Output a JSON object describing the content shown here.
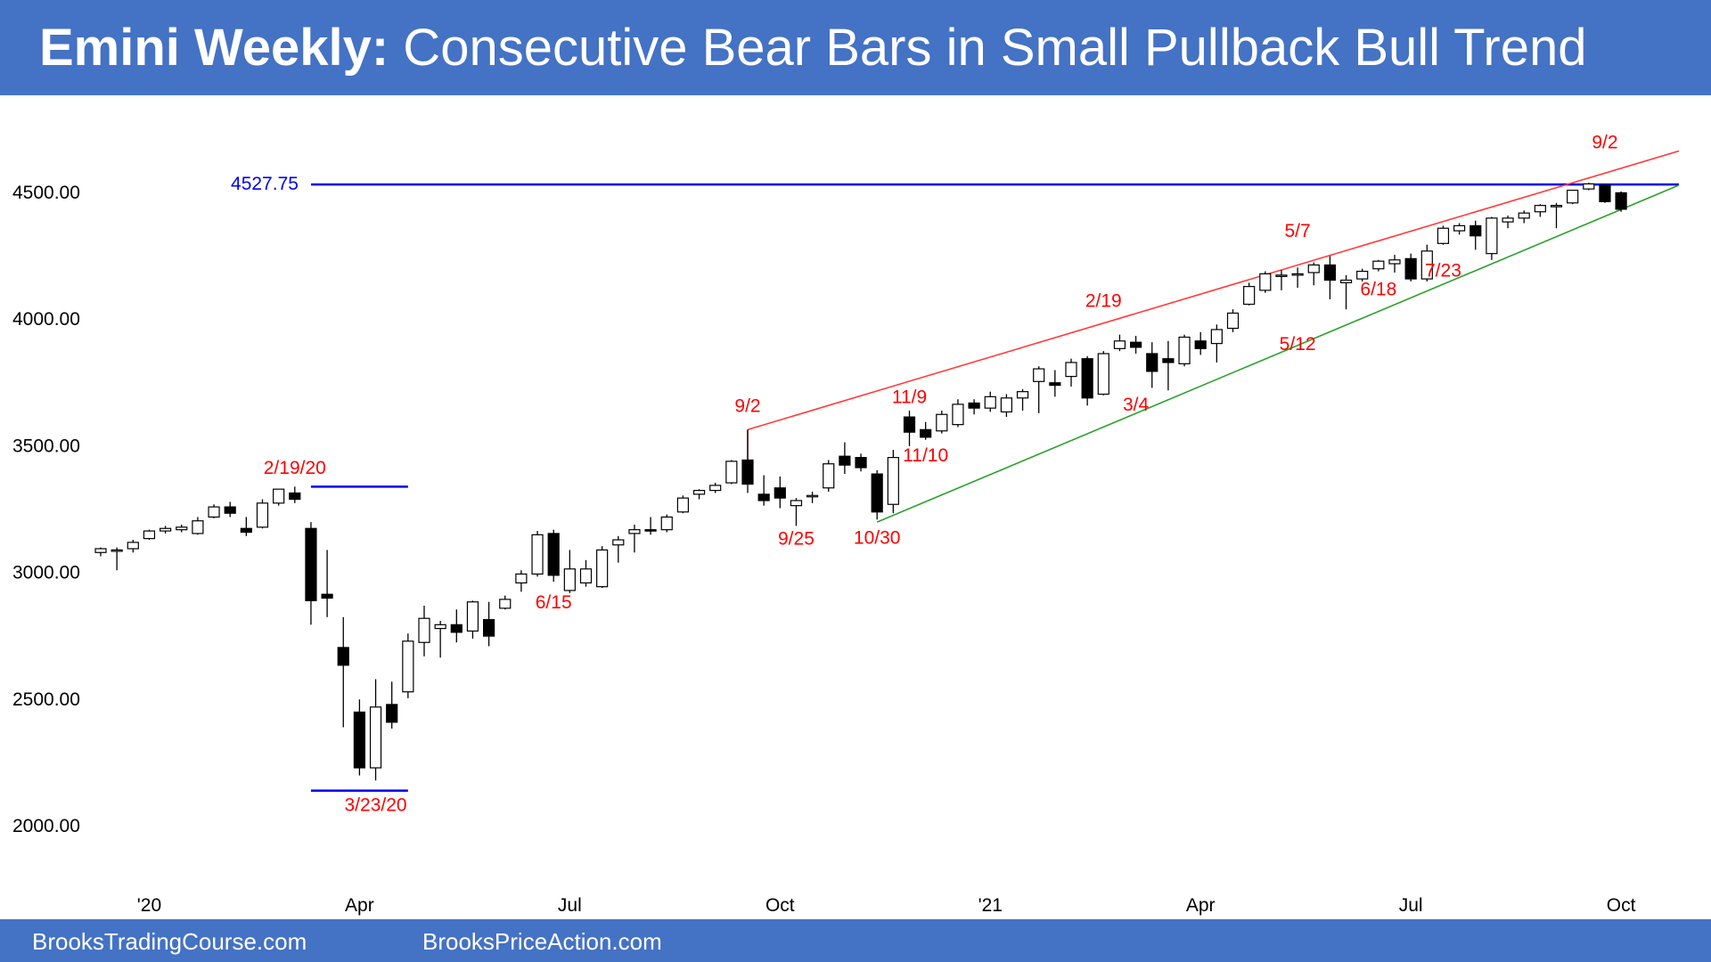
{
  "title": {
    "bold": "Emini Weekly:",
    "rest": " Consecutive Bear Bars in Small Pullback Bull Trend"
  },
  "footer": {
    "left": "BrooksTradingCourse.com",
    "right": "BrooksPriceAction.com"
  },
  "colors": {
    "banner": "#4472c4",
    "level_line": "#0000ee",
    "upper_trendline": "#ff3b3b",
    "lower_trendline": "#2ca02c",
    "label_red": "#ff0000",
    "label_blue": "#0000ee",
    "bull_bar": "#ffffff",
    "bear_bar": "#000000"
  },
  "chart_data": {
    "type": "candlestick",
    "title": "Emini Weekly: Consecutive Bear Bars in Small Pullback Bull Trend",
    "xlabel": "",
    "ylabel": "",
    "ylim": [
      1800,
      4800
    ],
    "y_ticks": [
      "2000.00",
      "2500.00",
      "3000.00",
      "3500.00",
      "4000.00",
      "4500.00"
    ],
    "x_tick_labels": [
      "'20",
      "Apr",
      "Jul",
      "Oct",
      "'21",
      "Apr",
      "Jul",
      "Oct"
    ],
    "x_tick_weeks": [
      3,
      16,
      29,
      42,
      55,
      68,
      81,
      94
    ],
    "grid": false,
    "bars": [
      {
        "o": 3075,
        "h": 3095,
        "l": 3060,
        "c": 3090
      },
      {
        "o": 3080,
        "h": 3095,
        "l": 3005,
        "c": 3085
      },
      {
        "o": 3090,
        "h": 3125,
        "l": 3075,
        "c": 3115
      },
      {
        "o": 3130,
        "h": 3165,
        "l": 3125,
        "c": 3160
      },
      {
        "o": 3160,
        "h": 3180,
        "l": 3150,
        "c": 3170
      },
      {
        "o": 3165,
        "h": 3185,
        "l": 3155,
        "c": 3175
      },
      {
        "o": 3150,
        "h": 3215,
        "l": 3145,
        "c": 3200
      },
      {
        "o": 3215,
        "h": 3265,
        "l": 3210,
        "c": 3255
      },
      {
        "o": 3255,
        "h": 3275,
        "l": 3215,
        "c": 3230
      },
      {
        "o": 3170,
        "h": 3215,
        "l": 3140,
        "c": 3155
      },
      {
        "o": 3175,
        "h": 3285,
        "l": 3170,
        "c": 3270
      },
      {
        "o": 3270,
        "h": 3325,
        "l": 3260,
        "c": 3325
      },
      {
        "o": 3310,
        "h": 3335,
        "l": 3270,
        "c": 3285
      },
      {
        "o": 3170,
        "h": 3195,
        "l": 2790,
        "c": 2885
      },
      {
        "o": 2910,
        "h": 3085,
        "l": 2820,
        "c": 2895
      },
      {
        "o": 2700,
        "h": 2820,
        "l": 2385,
        "c": 2630
      },
      {
        "o": 2445,
        "h": 2495,
        "l": 2195,
        "c": 2225
      },
      {
        "o": 2225,
        "h": 2575,
        "l": 2175,
        "c": 2465
      },
      {
        "o": 2475,
        "h": 2565,
        "l": 2380,
        "c": 2405
      },
      {
        "o": 2525,
        "h": 2755,
        "l": 2500,
        "c": 2725
      },
      {
        "o": 2720,
        "h": 2865,
        "l": 2665,
        "c": 2815
      },
      {
        "o": 2775,
        "h": 2805,
        "l": 2660,
        "c": 2790
      },
      {
        "o": 2790,
        "h": 2850,
        "l": 2720,
        "c": 2760
      },
      {
        "o": 2765,
        "h": 2885,
        "l": 2735,
        "c": 2880
      },
      {
        "o": 2810,
        "h": 2880,
        "l": 2705,
        "c": 2745
      },
      {
        "o": 2855,
        "h": 2905,
        "l": 2850,
        "c": 2890
      },
      {
        "o": 2955,
        "h": 3005,
        "l": 2920,
        "c": 2990
      },
      {
        "o": 2990,
        "h": 3160,
        "l": 2980,
        "c": 3145
      },
      {
        "o": 3150,
        "h": 3165,
        "l": 2960,
        "c": 2985
      },
      {
        "o": 2925,
        "h": 3085,
        "l": 2915,
        "c": 3010
      },
      {
        "o": 2955,
        "h": 3045,
        "l": 2940,
        "c": 3010
      },
      {
        "o": 2940,
        "h": 3100,
        "l": 2935,
        "c": 3085
      },
      {
        "o": 3105,
        "h": 3140,
        "l": 3035,
        "c": 3125
      },
      {
        "o": 3150,
        "h": 3185,
        "l": 3075,
        "c": 3165
      },
      {
        "o": 3165,
        "h": 3215,
        "l": 3145,
        "c": 3160
      },
      {
        "o": 3165,
        "h": 3225,
        "l": 3155,
        "c": 3215
      },
      {
        "o": 3235,
        "h": 3300,
        "l": 3230,
        "c": 3290
      },
      {
        "o": 3305,
        "h": 3325,
        "l": 3285,
        "c": 3320
      },
      {
        "o": 3320,
        "h": 3350,
        "l": 3310,
        "c": 3340
      },
      {
        "o": 3350,
        "h": 3440,
        "l": 3345,
        "c": 3435
      },
      {
        "o": 3440,
        "h": 3560,
        "l": 3310,
        "c": 3345
      },
      {
        "o": 3305,
        "h": 3380,
        "l": 3260,
        "c": 3280
      },
      {
        "o": 3330,
        "h": 3375,
        "l": 3250,
        "c": 3290
      },
      {
        "o": 3260,
        "h": 3290,
        "l": 3180,
        "c": 3280
      },
      {
        "o": 3295,
        "h": 3315,
        "l": 3270,
        "c": 3300
      },
      {
        "o": 3330,
        "h": 3440,
        "l": 3315,
        "c": 3425
      },
      {
        "o": 3455,
        "h": 3510,
        "l": 3385,
        "c": 3420
      },
      {
        "o": 3450,
        "h": 3465,
        "l": 3395,
        "c": 3410
      },
      {
        "o": 3385,
        "h": 3400,
        "l": 3205,
        "c": 3235
      },
      {
        "o": 3265,
        "h": 3480,
        "l": 3230,
        "c": 3450
      },
      {
        "o": 3610,
        "h": 3635,
        "l": 3495,
        "c": 3550
      },
      {
        "o": 3560,
        "h": 3590,
        "l": 3520,
        "c": 3530
      },
      {
        "o": 3555,
        "h": 3635,
        "l": 3545,
        "c": 3620
      },
      {
        "o": 3580,
        "h": 3680,
        "l": 3570,
        "c": 3660
      },
      {
        "o": 3665,
        "h": 3680,
        "l": 3620,
        "c": 3645
      },
      {
        "o": 3645,
        "h": 3710,
        "l": 3630,
        "c": 3690
      },
      {
        "o": 3630,
        "h": 3700,
        "l": 3610,
        "c": 3685
      },
      {
        "o": 3685,
        "h": 3720,
        "l": 3635,
        "c": 3710
      },
      {
        "o": 3750,
        "h": 3810,
        "l": 3625,
        "c": 3800
      },
      {
        "o": 3745,
        "h": 3795,
        "l": 3690,
        "c": 3735
      },
      {
        "o": 3770,
        "h": 3840,
        "l": 3730,
        "c": 3825
      },
      {
        "o": 3840,
        "h": 3850,
        "l": 3655,
        "c": 3685
      },
      {
        "o": 3700,
        "h": 3870,
        "l": 3695,
        "c": 3860
      },
      {
        "o": 3880,
        "h": 3935,
        "l": 3870,
        "c": 3910
      },
      {
        "o": 3905,
        "h": 3930,
        "l": 3860,
        "c": 3885
      },
      {
        "o": 3860,
        "h": 3905,
        "l": 3725,
        "c": 3790
      },
      {
        "o": 3840,
        "h": 3910,
        "l": 3715,
        "c": 3825
      },
      {
        "o": 3820,
        "h": 3935,
        "l": 3810,
        "c": 3925
      },
      {
        "o": 3910,
        "h": 3945,
        "l": 3855,
        "c": 3880
      },
      {
        "o": 3900,
        "h": 3975,
        "l": 3825,
        "c": 3955
      },
      {
        "o": 3960,
        "h": 4035,
        "l": 3945,
        "c": 4020
      },
      {
        "o": 4055,
        "h": 4140,
        "l": 4050,
        "c": 4125
      },
      {
        "o": 4110,
        "h": 4185,
        "l": 4100,
        "c": 4175
      },
      {
        "o": 4165,
        "h": 4190,
        "l": 4110,
        "c": 4170
      },
      {
        "o": 4170,
        "h": 4200,
        "l": 4120,
        "c": 4175
      },
      {
        "o": 4180,
        "h": 4220,
        "l": 4130,
        "c": 4210
      },
      {
        "o": 4210,
        "h": 4245,
        "l": 4075,
        "c": 4150
      },
      {
        "o": 4140,
        "h": 4170,
        "l": 4035,
        "c": 4150
      },
      {
        "o": 4155,
        "h": 4195,
        "l": 4145,
        "c": 4185
      },
      {
        "o": 4195,
        "h": 4230,
        "l": 4185,
        "c": 4225
      },
      {
        "o": 4215,
        "h": 4250,
        "l": 4180,
        "c": 4230
      },
      {
        "o": 4235,
        "h": 4255,
        "l": 4145,
        "c": 4155
      },
      {
        "o": 4155,
        "h": 4290,
        "l": 4145,
        "c": 4265
      },
      {
        "o": 4295,
        "h": 4365,
        "l": 4290,
        "c": 4355
      },
      {
        "o": 4345,
        "h": 4375,
        "l": 4330,
        "c": 4365
      },
      {
        "o": 4365,
        "h": 4385,
        "l": 4270,
        "c": 4325
      },
      {
        "o": 4255,
        "h": 4400,
        "l": 4230,
        "c": 4395
      },
      {
        "o": 4380,
        "h": 4405,
        "l": 4355,
        "c": 4395
      },
      {
        "o": 4395,
        "h": 4425,
        "l": 4375,
        "c": 4415
      },
      {
        "o": 4420,
        "h": 4450,
        "l": 4400,
        "c": 4445
      },
      {
        "o": 4440,
        "h": 4455,
        "l": 4355,
        "c": 4445
      },
      {
        "o": 4455,
        "h": 4505,
        "l": 4450,
        "c": 4505
      },
      {
        "o": 4510,
        "h": 4535,
        "l": 4505,
        "c": 4530
      },
      {
        "o": 4525,
        "h": 4530,
        "l": 4455,
        "c": 4460
      },
      {
        "o": 4495,
        "h": 4500,
        "l": 4420,
        "c": 4430
      }
    ],
    "horizontal_levels": [
      {
        "value": 4527.75,
        "label": "4527.75",
        "from_week": 13,
        "to_week": 100
      },
      {
        "value": 3335,
        "label": "",
        "from_week": 13,
        "to_week": 19
      },
      {
        "value": 2135,
        "label": "",
        "from_week": 13,
        "to_week": 19
      }
    ],
    "trendlines": [
      {
        "name": "upper",
        "from": {
          "week": 40,
          "value": 3560
        },
        "to": {
          "week": 100,
          "value": 4660
        }
      },
      {
        "name": "lower",
        "from": {
          "week": 48,
          "value": 3195
        },
        "to": {
          "week": 100,
          "value": 4525
        }
      }
    ],
    "annotations": [
      {
        "text": "2/19/20",
        "week": 12,
        "value": 3385,
        "color": "red"
      },
      {
        "text": "3/23/20",
        "week": 17,
        "value": 2055,
        "color": "red"
      },
      {
        "text": "6/15",
        "week": 28,
        "value": 2855,
        "color": "red"
      },
      {
        "text": "9/2",
        "week": 40,
        "value": 3630,
        "color": "red"
      },
      {
        "text": "9/25",
        "week": 43,
        "value": 3105,
        "color": "red"
      },
      {
        "text": "10/30",
        "week": 48,
        "value": 3110,
        "color": "red"
      },
      {
        "text": "11/9",
        "week": 50,
        "value": 3665,
        "color": "red"
      },
      {
        "text": "11/10",
        "week": 51,
        "value": 3435,
        "color": "red"
      },
      {
        "text": "2/19",
        "week": 62,
        "value": 4045,
        "color": "red"
      },
      {
        "text": "3/4",
        "week": 64,
        "value": 3635,
        "color": "red"
      },
      {
        "text": "5/7",
        "week": 74,
        "value": 4320,
        "color": "red"
      },
      {
        "text": "5/12",
        "week": 74,
        "value": 3875,
        "color": "red"
      },
      {
        "text": "6/18",
        "week": 79,
        "value": 4090,
        "color": "red"
      },
      {
        "text": "7/23",
        "week": 83,
        "value": 4165,
        "color": "red"
      },
      {
        "text": "9/2",
        "week": 93,
        "value": 4670,
        "color": "red"
      }
    ]
  }
}
